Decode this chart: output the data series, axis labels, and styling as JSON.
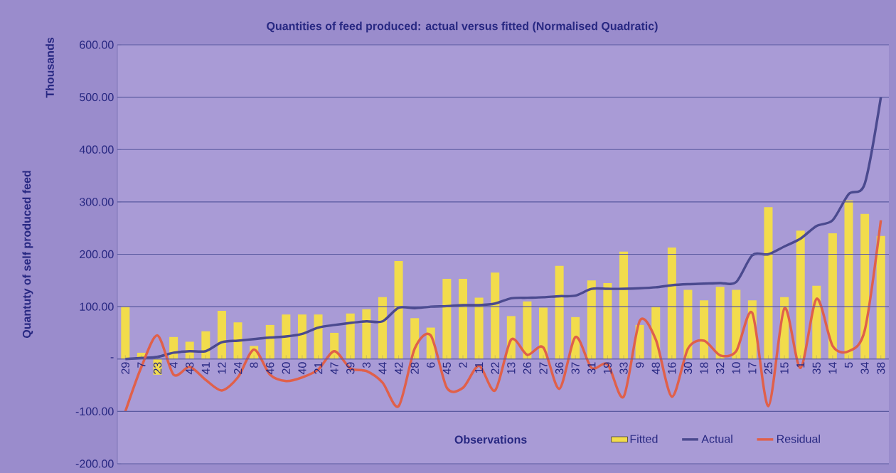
{
  "chart_data": {
    "type": "bar",
    "title": "Quantities of feed produced: actual versus fitted (Normalised Quadratic)",
    "xlabel": "Observations",
    "ylabel": "Quantuty of self produced feed",
    "annotations": [
      "Thousands"
    ],
    "categories": [
      "29",
      "7",
      "23",
      "4",
      "43",
      "41",
      "12",
      "24",
      "8",
      "46",
      "20",
      "40",
      "21",
      "47",
      "39",
      "3",
      "44",
      "42",
      "28",
      "6",
      "45",
      "2",
      "11",
      "22",
      "13",
      "26",
      "27",
      "36",
      "37",
      "31",
      "19",
      "33",
      "9",
      "48",
      "16",
      "30",
      "18",
      "32",
      "10",
      "17",
      "25",
      "15",
      "1",
      "35",
      "14",
      "5",
      "34",
      "38"
    ],
    "series": [
      {
        "name": "Fitted",
        "type": "bar",
        "color": "#f2dc4c",
        "values": [
          100,
          12,
          -30,
          42,
          33,
          53,
          92,
          70,
          25,
          65,
          85,
          85,
          85,
          50,
          87,
          95,
          118,
          187,
          78,
          60,
          153,
          153,
          117,
          165,
          82,
          110,
          98,
          178,
          80,
          150,
          145,
          205,
          65,
          100,
          213,
          132,
          112,
          138,
          132,
          112,
          290,
          118,
          245,
          140,
          240,
          303,
          277,
          235
        ]
      },
      {
        "name": "Actual",
        "type": "line",
        "color": "#4b4a8f",
        "values": [
          0,
          2,
          4,
          12,
          15,
          15,
          32,
          35,
          38,
          41,
          43,
          48,
          60,
          65,
          69,
          72,
          72,
          98,
          97,
          100,
          101,
          103,
          103,
          106,
          116,
          117,
          118,
          120,
          121,
          134,
          134,
          134,
          135,
          137,
          141,
          143,
          144,
          145,
          147,
          198,
          200,
          215,
          230,
          254,
          265,
          315,
          335,
          500
        ]
      },
      {
        "name": "Residual",
        "type": "line",
        "color": "#e0604a",
        "values": [
          -100,
          -15,
          45,
          -30,
          -15,
          -40,
          -60,
          -35,
          18,
          -30,
          -42,
          -35,
          -20,
          15,
          -18,
          -23,
          -45,
          -90,
          20,
          45,
          -55,
          -55,
          -13,
          -60,
          37,
          8,
          22,
          -57,
          42,
          -17,
          -10,
          -72,
          73,
          37,
          -72,
          20,
          35,
          7,
          15,
          88,
          -90,
          97,
          -17,
          115,
          25,
          15,
          55,
          265
        ]
      }
    ],
    "ylim": [
      -200,
      600
    ],
    "yticks": [
      {
        "value": -200,
        "label": "-200.00"
      },
      {
        "value": -100,
        "label": "-100.00"
      },
      {
        "value": 0,
        "label": "-"
      },
      {
        "value": 100,
        "label": "100.00"
      },
      {
        "value": 200,
        "label": "200.00"
      },
      {
        "value": 300,
        "label": "300.00"
      },
      {
        "value": 400,
        "label": "400.00"
      },
      {
        "value": 500,
        "label": "500.00"
      },
      {
        "value": 600,
        "label": "600.00"
      }
    ],
    "grid": "y",
    "legend": "bottom",
    "marker": "none",
    "line_style": "solid"
  }
}
